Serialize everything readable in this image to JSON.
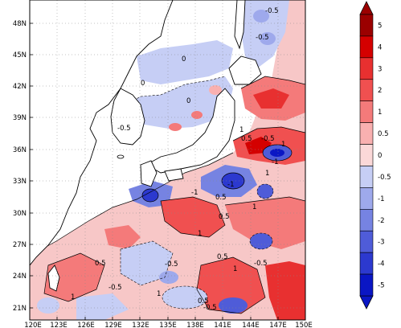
{
  "map": {
    "lat_ticks": [
      "48N",
      "45N",
      "42N",
      "39N",
      "36N",
      "33N",
      "30N",
      "27N",
      "24N",
      "21N"
    ],
    "lon_ticks": [
      "120E",
      "123E",
      "126E",
      "129E",
      "132E",
      "135E",
      "138E",
      "141E",
      "144E",
      "147E",
      "150E"
    ],
    "contour_labels": [
      "-0.5",
      "-0.5",
      "0",
      "0",
      "-0.5",
      "0",
      "0.5",
      "1",
      "1",
      "-0.5",
      "-1",
      "1",
      "-1",
      "-1",
      "0.5",
      "1",
      "0.5",
      "1",
      "0.5",
      "1",
      "-0.5",
      "-0.5",
      "1",
      "0.5",
      "-0.5",
      "-0.5",
      "0.5",
      "1"
    ]
  },
  "colorbar": {
    "labels": [
      "5",
      "4",
      "3",
      "2",
      "1",
      "0.5",
      "0",
      "-0.5",
      "-1",
      "-2",
      "-3",
      "-4",
      "-5"
    ],
    "colors": [
      "#9b0000",
      "#d40000",
      "#e83030",
      "#f05050",
      "#f47a7a",
      "#f9b0b0",
      "#fbd8d8",
      "#c6cef5",
      "#9ea9ec",
      "#7683e2",
      "#4f5cd8",
      "#2c39cf",
      "#0a16c4"
    ]
  }
}
